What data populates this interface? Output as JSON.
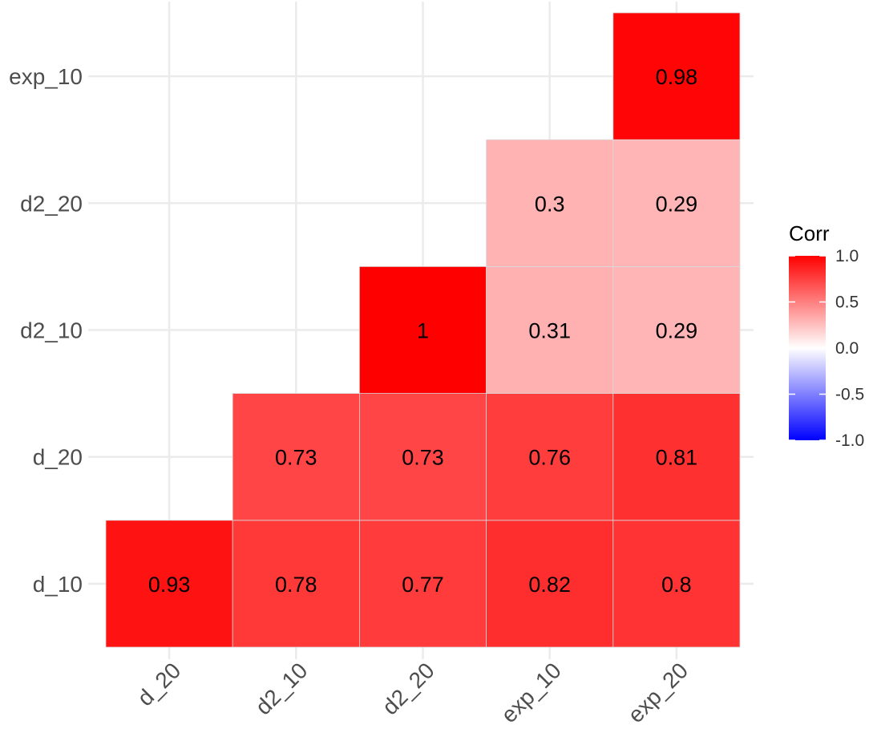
{
  "chart_data": {
    "type": "heatmap",
    "title": "",
    "xlabel": "",
    "ylabel": "",
    "x_categories": [
      "d_20",
      "d2_10",
      "d2_20",
      "exp_10",
      "exp_20"
    ],
    "y_categories": [
      "d_10",
      "d_20",
      "d2_10",
      "d2_20",
      "exp_10"
    ],
    "cells": [
      {
        "x": "d_20",
        "y": "d_10",
        "value": 0.93,
        "label": "0.93"
      },
      {
        "x": "d2_10",
        "y": "d_10",
        "value": 0.78,
        "label": "0.78"
      },
      {
        "x": "d2_20",
        "y": "d_10",
        "value": 0.77,
        "label": "0.77"
      },
      {
        "x": "exp_10",
        "y": "d_10",
        "value": 0.82,
        "label": "0.82"
      },
      {
        "x": "exp_20",
        "y": "d_10",
        "value": 0.8,
        "label": "0.8"
      },
      {
        "x": "d2_10",
        "y": "d_20",
        "value": 0.73,
        "label": "0.73"
      },
      {
        "x": "d2_20",
        "y": "d_20",
        "value": 0.73,
        "label": "0.73"
      },
      {
        "x": "exp_10",
        "y": "d_20",
        "value": 0.76,
        "label": "0.76"
      },
      {
        "x": "exp_20",
        "y": "d_20",
        "value": 0.81,
        "label": "0.81"
      },
      {
        "x": "d2_20",
        "y": "d2_10",
        "value": 1,
        "label": "1"
      },
      {
        "x": "exp_10",
        "y": "d2_10",
        "value": 0.31,
        "label": "0.31"
      },
      {
        "x": "exp_20",
        "y": "d2_10",
        "value": 0.29,
        "label": "0.29"
      },
      {
        "x": "exp_10",
        "y": "d2_20",
        "value": 0.3,
        "label": "0.3"
      },
      {
        "x": "exp_20",
        "y": "d2_20",
        "value": 0.29,
        "label": "0.29"
      },
      {
        "x": "exp_20",
        "y": "exp_10",
        "value": 0.98,
        "label": "0.98"
      }
    ],
    "color_scale": {
      "low": "#0000ff",
      "mid": "#ffffff",
      "high": "#ff0000",
      "limits": [
        -1,
        1
      ]
    },
    "legend": {
      "title": "Corr",
      "ticks": [
        "1.0",
        "0.5",
        "0.0",
        "-0.5",
        "-1.0"
      ],
      "tick_values": [
        1,
        0.5,
        0,
        -0.5,
        -1
      ],
      "placement": "right"
    },
    "grid": true
  }
}
